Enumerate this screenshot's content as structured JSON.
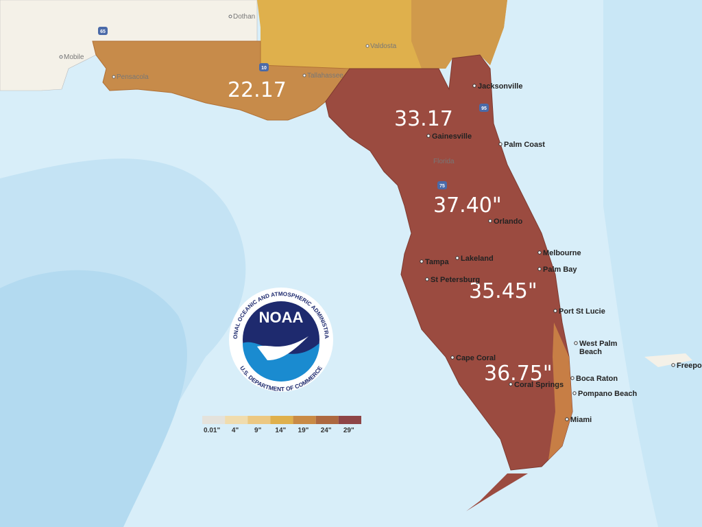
{
  "regions": [
    {
      "label": "22.17"
    },
    {
      "label": "33.17"
    },
    {
      "label": "37.40\""
    },
    {
      "label": "35.45\""
    },
    {
      "label": "36.75\""
    }
  ],
  "cities": [
    {
      "name": "Jacksonville"
    },
    {
      "name": "Gainesville"
    },
    {
      "name": "Palm Coast"
    },
    {
      "name": "Orlando"
    },
    {
      "name": "Melbourne"
    },
    {
      "name": "Palm Bay"
    },
    {
      "name": "Tampa"
    },
    {
      "name": "Lakeland"
    },
    {
      "name": "St Petersburg"
    },
    {
      "name": "Port St Lucie"
    },
    {
      "lines": [
        "West Palm",
        "Beach"
      ]
    },
    {
      "name": "Cape Coral"
    },
    {
      "name": "Coral Springs"
    },
    {
      "name": "Boca Raton"
    },
    {
      "name": "Pompano Beach"
    },
    {
      "name": "Miami"
    },
    {
      "name": "Freeport"
    }
  ],
  "background_places": [
    {
      "name": "Tallahassee"
    },
    {
      "name": "Pensacola"
    },
    {
      "name": "Valdosta"
    },
    {
      "name": "Dothan"
    },
    {
      "name": "Mobile"
    },
    {
      "name": "Florida"
    }
  ],
  "highways": [
    "10",
    "65",
    "95",
    "75"
  ],
  "legend": {
    "items": [
      {
        "label": "0.01\"",
        "color": "#e4e2dc"
      },
      {
        "label": "4\"",
        "color": "#f0dcae"
      },
      {
        "label": "9\"",
        "color": "#ecc882"
      },
      {
        "label": "14\"",
        "color": "#dfb04c"
      },
      {
        "label": "19\"",
        "color": "#c98a45"
      },
      {
        "label": "24\"",
        "color": "#ad6840"
      },
      {
        "label": "29\"",
        "color": "#8e4446"
      }
    ]
  },
  "logo": {
    "name": "NOAA",
    "top": "NATIONAL OCEANIC AND ATMOSPHERIC ADMINISTRATION",
    "bottom": "U.S. DEPARTMENT OF COMMERCE"
  }
}
